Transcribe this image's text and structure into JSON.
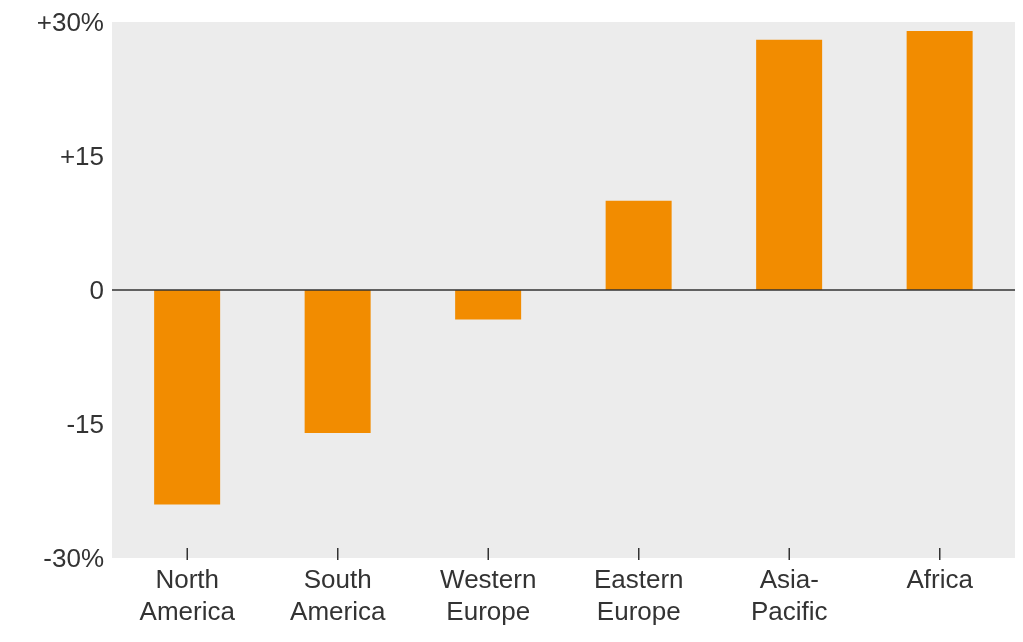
{
  "chart_data": {
    "type": "bar",
    "categories": [
      "North America",
      "South America",
      "Western Europe",
      "Eastern Europe",
      "Asia-Pacific",
      "Africa"
    ],
    "values": [
      -24,
      -16,
      -3.3,
      10,
      28,
      29
    ],
    "color": "#f28c00",
    "ylim": [
      -30,
      30
    ],
    "yticks": [
      {
        "value": -30,
        "label": "-30%"
      },
      -15,
      0,
      {
        "value": 15,
        "label": "+15"
      },
      {
        "value": 30,
        "label": "+30%"
      }
    ],
    "ref_lines": [
      {
        "axis": "y",
        "value": 0,
        "color": "#333333"
      }
    ],
    "grid": false
  }
}
